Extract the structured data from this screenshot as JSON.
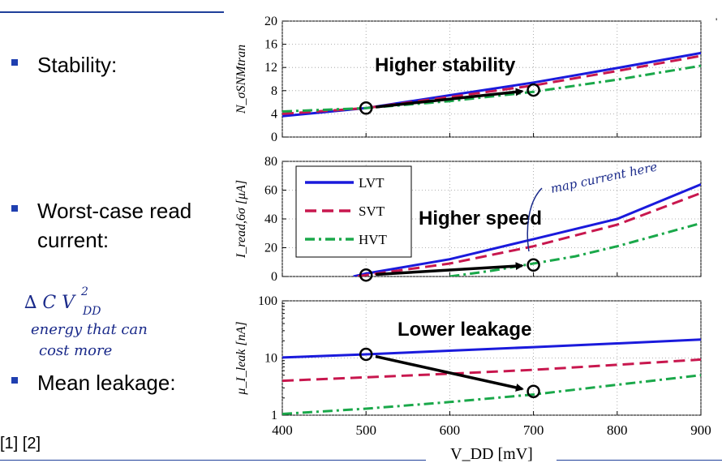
{
  "bullets": [
    {
      "text": "Stability:"
    },
    {
      "text": "Worst-case read current:"
    },
    {
      "text": "Mean leakage:"
    }
  ],
  "refs": "[1] [2]",
  "annotations": {
    "hand_note_top": "map current here",
    "hand_note_left_1": "∆ C V",
    "hand_note_left_sup": "2",
    "hand_note_left_sub": "DD",
    "hand_note_left_2": "energy that can",
    "hand_note_left_3": "cost more"
  },
  "colors": {
    "LVT": "#1a1adc",
    "SVT": "#c8174e",
    "HVT": "#1aa84a",
    "accent": "#1f3fb0"
  },
  "chart_data": [
    {
      "type": "line",
      "title": "Higher stability",
      "ylabel": "N_σSNMtran",
      "xlim": [
        400,
        900
      ],
      "ylim": [
        0,
        20
      ],
      "yticks": [
        0,
        4,
        8,
        12,
        16,
        20
      ],
      "grid": true,
      "series": [
        {
          "name": "LVT",
          "x": [
            400,
            500,
            600,
            700,
            800,
            900
          ],
          "y": [
            3.6,
            5.0,
            7.2,
            9.4,
            11.9,
            14.5
          ]
        },
        {
          "name": "SVT",
          "x": [
            400,
            500,
            600,
            700,
            800,
            900
          ],
          "y": [
            4.0,
            5.0,
            6.9,
            8.9,
            11.4,
            14.0
          ]
        },
        {
          "name": "HVT",
          "x": [
            400,
            500,
            600,
            700,
            800,
            900
          ],
          "y": [
            4.4,
            5.0,
            6.2,
            7.8,
            9.9,
            12.3
          ]
        }
      ],
      "arrow": {
        "from": [
          500,
          5.0
        ],
        "to": [
          700,
          8.1
        ]
      }
    },
    {
      "type": "line",
      "title": "Higher speed",
      "ylabel": "I_read,6σ [μA]",
      "xlim": [
        400,
        900
      ],
      "ylim": [
        0,
        80
      ],
      "yticks": [
        0,
        20,
        40,
        60,
        80
      ],
      "grid": true,
      "legend": "top-left",
      "series": [
        {
          "name": "LVT",
          "x": [
            485,
            500,
            600,
            700,
            800,
            900
          ],
          "y": [
            0,
            2,
            12,
            26,
            40,
            64
          ]
        },
        {
          "name": "SVT",
          "x": [
            490,
            500,
            600,
            700,
            800,
            900
          ],
          "y": [
            0,
            1,
            9,
            21,
            36,
            58
          ]
        },
        {
          "name": "HVT",
          "x": [
            600,
            650,
            700,
            750,
            800,
            900
          ],
          "y": [
            0,
            4,
            9,
            14,
            21,
            37
          ]
        }
      ],
      "arrow": {
        "from": [
          500,
          1
        ],
        "to": [
          700,
          8
        ]
      }
    },
    {
      "type": "line",
      "title": "Lower leakage",
      "ylabel": "μ_I_leak [nA]",
      "xlabel": "V_DD [mV]",
      "xlim": [
        400,
        900
      ],
      "ylim": [
        1,
        100
      ],
      "yscale": "log",
      "yticks": [
        1,
        10,
        100
      ],
      "xticks": [
        400,
        500,
        600,
        700,
        800,
        900
      ],
      "grid": true,
      "series": [
        {
          "name": "LVT",
          "x": [
            400,
            500,
            600,
            700,
            800,
            900
          ],
          "y": [
            10.2,
            11.6,
            13.4,
            15.5,
            18.0,
            21.0
          ]
        },
        {
          "name": "SVT",
          "x": [
            400,
            500,
            600,
            700,
            800,
            900
          ],
          "y": [
            4.0,
            4.6,
            5.3,
            6.2,
            7.6,
            9.4
          ]
        },
        {
          "name": "HVT",
          "x": [
            400,
            500,
            600,
            700,
            800,
            900
          ],
          "y": [
            1.05,
            1.3,
            1.7,
            2.3,
            3.4,
            5.0
          ]
        }
      ],
      "arrow": {
        "from": [
          500,
          11.6
        ],
        "to": [
          700,
          2.6
        ]
      }
    }
  ]
}
